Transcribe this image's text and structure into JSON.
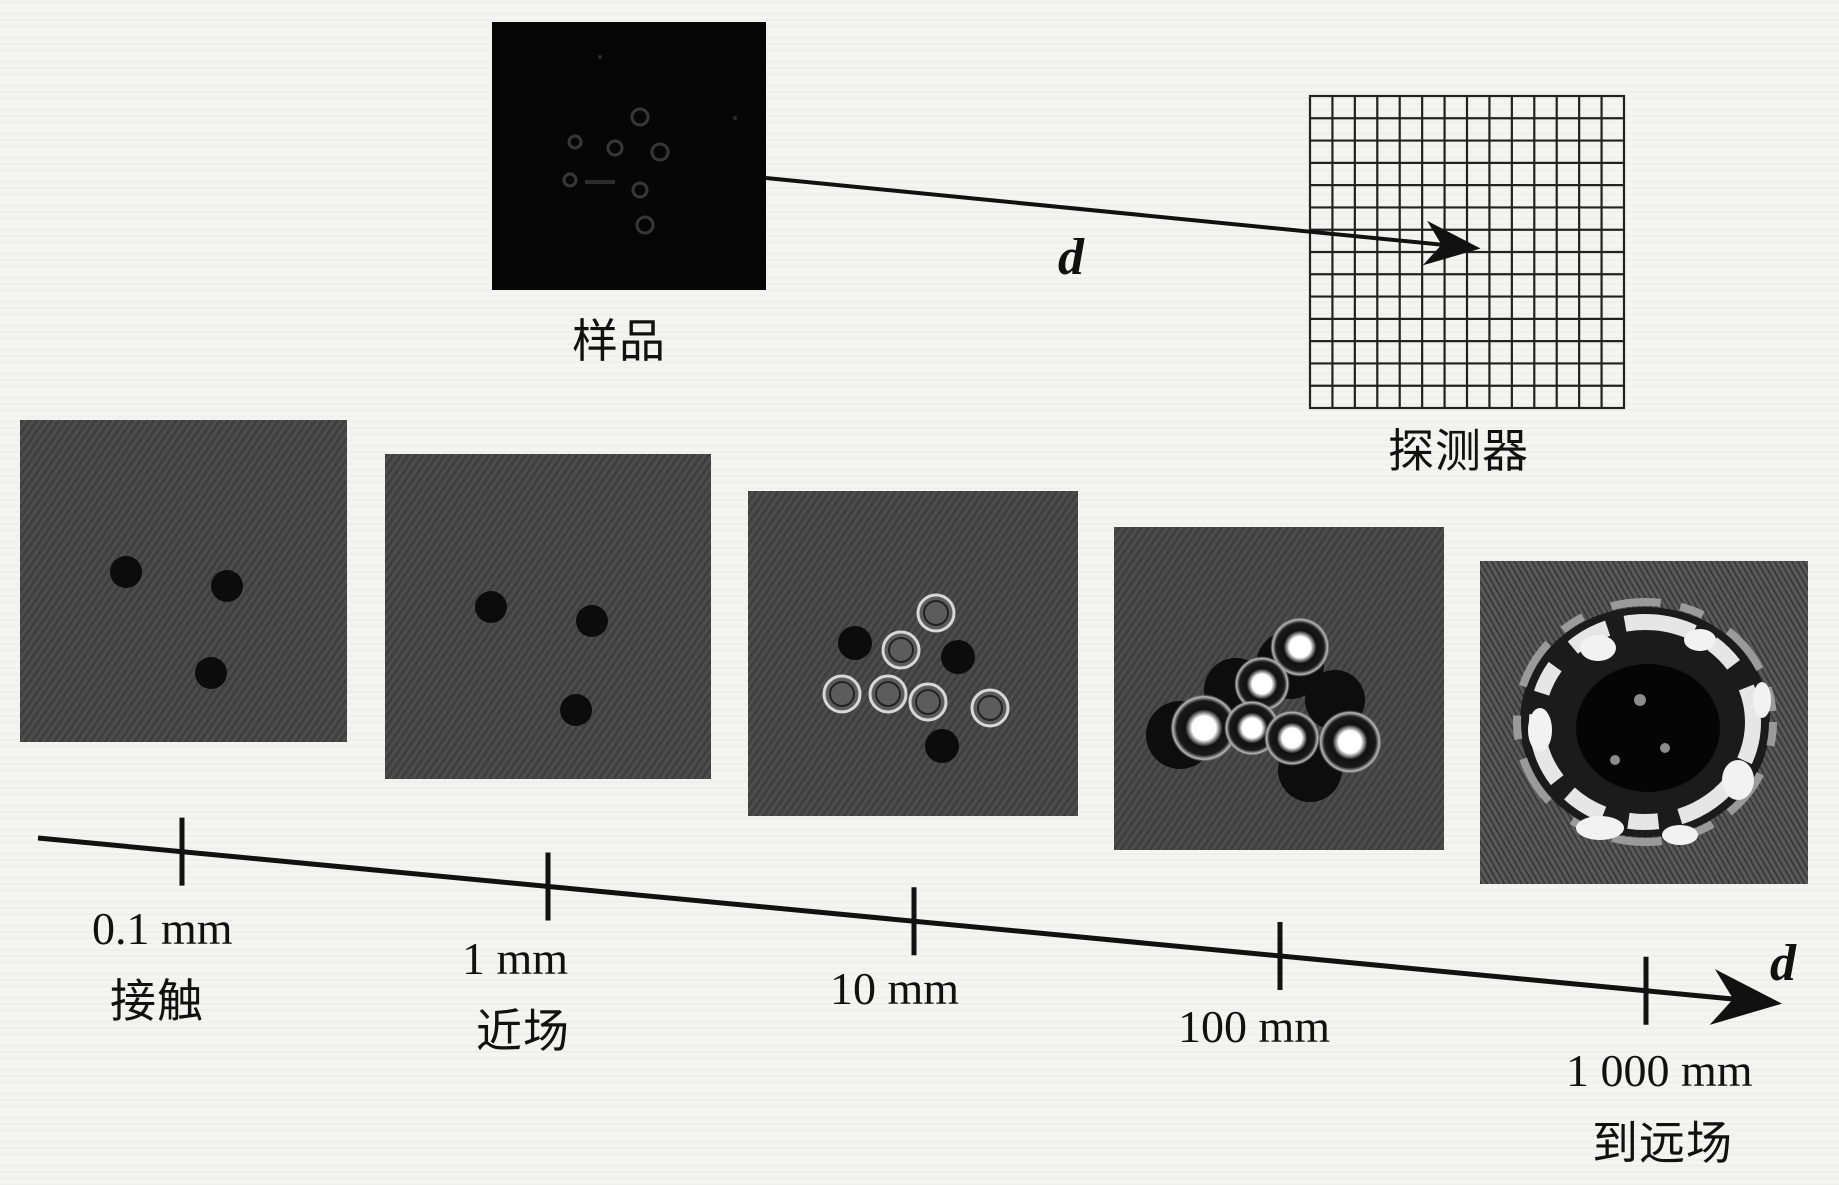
{
  "top": {
    "sample_label": "样品",
    "detector_label": "探测器",
    "distance_var": "d"
  },
  "axis": {
    "variable": "d",
    "ticks": [
      {
        "distance": "0.1 mm",
        "regime": "接触"
      },
      {
        "distance": "1 mm",
        "regime": "近场"
      },
      {
        "distance": "10 mm",
        "regime": ""
      },
      {
        "distance": "100 mm",
        "regime": ""
      },
      {
        "distance": "1 000 mm",
        "regime": "到远场"
      }
    ]
  },
  "colors": {
    "ink": "#111111",
    "panel_gray": "#4a4a4a",
    "background": "#f4f4f2"
  }
}
